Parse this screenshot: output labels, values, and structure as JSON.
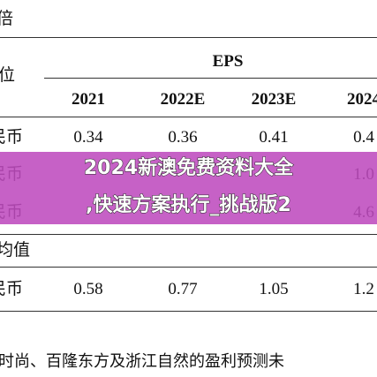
{
  "header": {
    "corner": "倍"
  },
  "table": {
    "group_header": "EPS",
    "unit_label": "位",
    "years": [
      "2021",
      "2022E",
      "2023E",
      "2024"
    ],
    "rows": [
      {
        "label": "民币",
        "values": [
          "0.34",
          "0.36",
          "0.41",
          "0.4"
        ]
      },
      {
        "label": "民币",
        "right_value": "1.0"
      },
      {
        "label": "民币",
        "right_value": "4.6"
      }
    ],
    "section": "均值",
    "section_row": {
      "label": "民币",
      "values": [
        "0.58",
        "0.77",
        "1.05",
        "1.2"
      ]
    }
  },
  "banner": {
    "lines": [
      "2024新澳免费资料大全",
      ",快速方案执行_挑战版2"
    ]
  },
  "footnote": "子时尚、百隆东方及浙江自然的盈利预测未"
}
